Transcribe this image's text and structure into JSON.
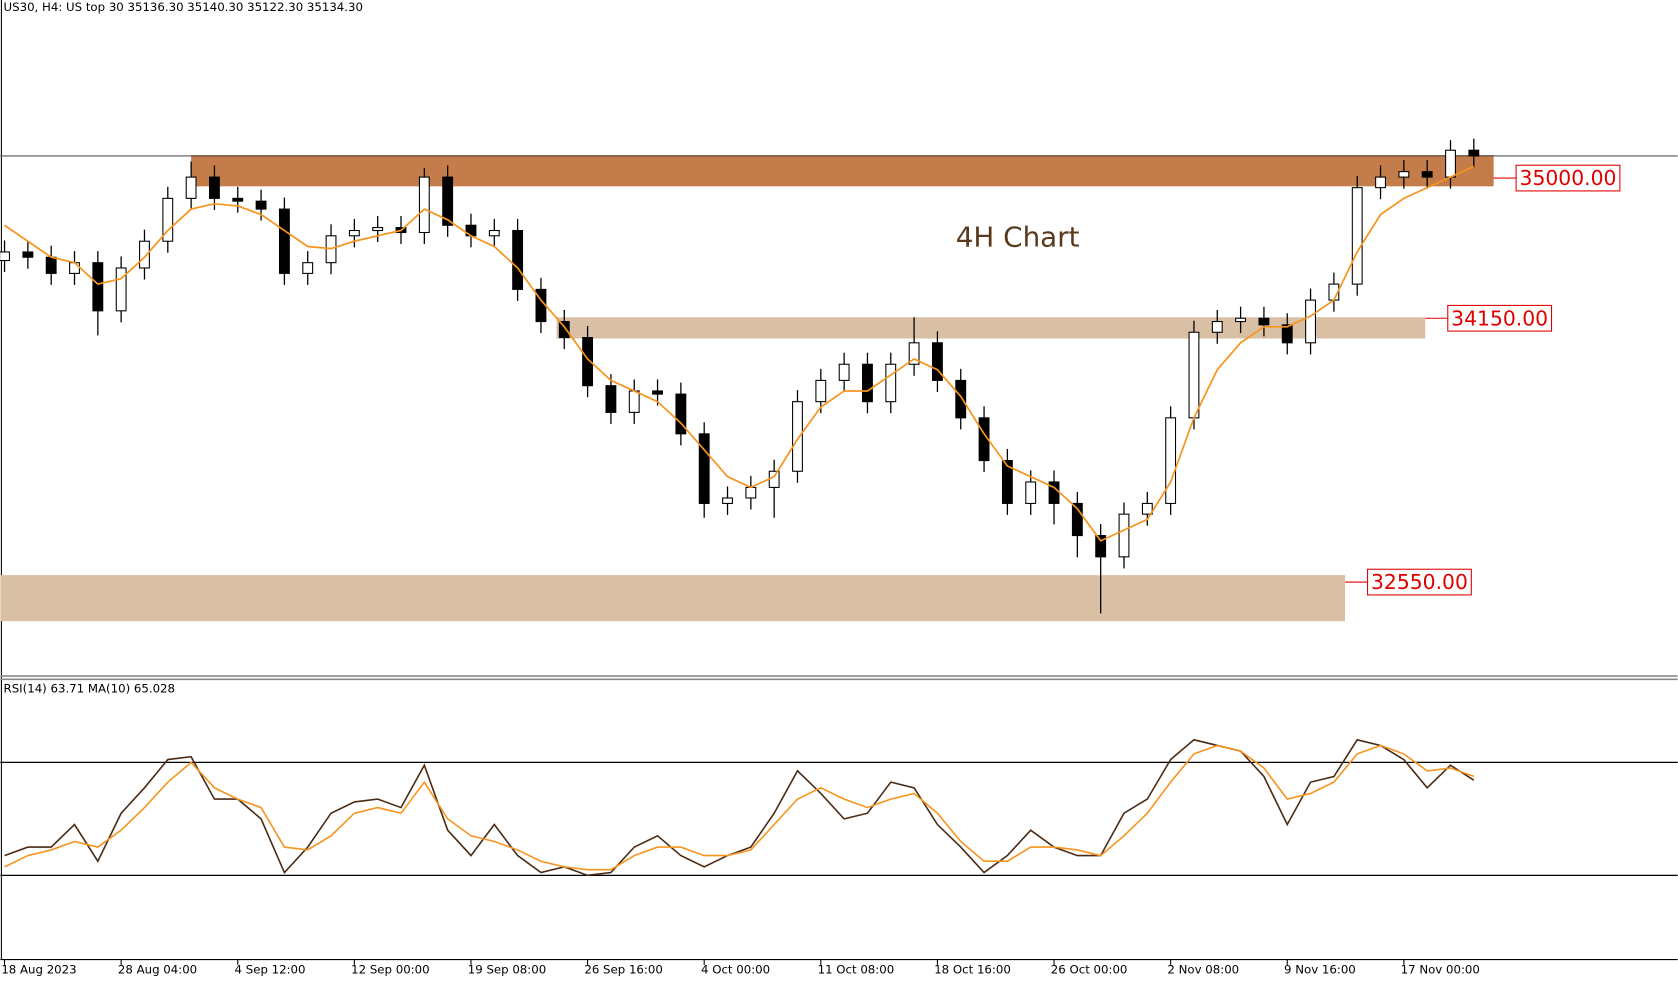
{
  "chart_data": [
    {
      "type": "candlestick",
      "title": "US30, H4:  US top 30  35136.30 35140.30 35122.30 35134.30",
      "annotation": "4H Chart",
      "xlim": [
        -0.18,
        71.74
      ],
      "ylim": [
        31980,
        36080
      ],
      "xticks": [
        {
          "value": 0,
          "label": "18 Aug 2023"
        },
        {
          "value": 5,
          "label": "28 Aug 04:00"
        },
        {
          "value": 10,
          "label": "4 Sep 12:00"
        },
        {
          "value": 15,
          "label": "12 Sep 00:00"
        },
        {
          "value": 20,
          "label": "19 Sep 08:00"
        },
        {
          "value": 25,
          "label": "26 Sep 16:00"
        },
        {
          "value": 30,
          "label": "4 Oct 00:00"
        },
        {
          "value": 35,
          "label": "11 Oct 08:00"
        },
        {
          "value": 40,
          "label": "18 Oct 16:00"
        },
        {
          "value": 45,
          "label": "26 Oct 00:00"
        },
        {
          "value": 50,
          "label": "2 Nov 08:00"
        },
        {
          "value": 55,
          "label": "9 Nov 16:00"
        },
        {
          "value": 60,
          "label": "17 Nov 00:00"
        }
      ],
      "open": [
        34500,
        34552,
        34520,
        34422,
        34487,
        34195,
        34455,
        34617,
        34877,
        35006,
        34877,
        34860,
        34812,
        34422,
        34487,
        34650,
        34682,
        34700,
        34670,
        35006,
        34714,
        34650,
        34682,
        34325,
        34130,
        34033,
        33741,
        33579,
        33709,
        33690,
        33449,
        33027,
        33060,
        33124,
        33222,
        33644,
        33773,
        33871,
        33644,
        33871,
        34001,
        33773,
        33546,
        33287,
        33027,
        33157,
        33027,
        32832,
        32703,
        32962,
        33027,
        33546,
        34065,
        34130,
        34150,
        34110,
        34001,
        34260,
        34357,
        34942,
        35006,
        35039,
        35006,
        35169
      ],
      "high": [
        34622,
        34622,
        34590,
        34557,
        34557,
        34525,
        34687,
        34947,
        35100,
        35076,
        34947,
        34930,
        34882,
        34557,
        34720,
        34752,
        34770,
        34770,
        35060,
        35076,
        34784,
        34752,
        34752,
        34395,
        34200,
        34103,
        33811,
        33779,
        33779,
        33760,
        33519,
        33130,
        33194,
        33292,
        33714,
        33843,
        33941,
        33941,
        33941,
        34156,
        34071,
        33843,
        33616,
        33357,
        33227,
        33227,
        33097,
        32902,
        33032,
        33097,
        33616,
        34135,
        34200,
        34220,
        34220,
        34180,
        34330,
        34427,
        35012,
        35076,
        35109,
        35109,
        35230,
        35239
      ],
      "low": [
        34430,
        34450,
        34352,
        34352,
        34046,
        34125,
        34385,
        34547,
        34807,
        34807,
        34790,
        34742,
        34352,
        34352,
        34417,
        34580,
        34612,
        34600,
        34600,
        34644,
        34580,
        34580,
        34255,
        34060,
        33963,
        33671,
        33509,
        33509,
        33620,
        33379,
        32940,
        32957,
        32990,
        32940,
        33152,
        33574,
        33703,
        33574,
        33574,
        33801,
        33703,
        33476,
        33217,
        32957,
        32957,
        32900,
        32700,
        32360,
        32633,
        32892,
        32957,
        33476,
        33995,
        34060,
        34040,
        33931,
        33931,
        34190,
        34287,
        34872,
        34936,
        34936,
        34936,
        35064
      ],
      "close": [
        34552,
        34520,
        34422,
        34487,
        34195,
        34455,
        34617,
        34877,
        35006,
        34877,
        34860,
        34812,
        34422,
        34487,
        34650,
        34682,
        34700,
        34670,
        35006,
        34714,
        34650,
        34682,
        34325,
        34130,
        34033,
        33741,
        33579,
        33709,
        33690,
        33449,
        33027,
        33060,
        33124,
        33222,
        33644,
        33773,
        33871,
        33644,
        33871,
        34001,
        33773,
        33546,
        33287,
        33027,
        33157,
        33027,
        32832,
        32703,
        32962,
        33027,
        33546,
        34065,
        34130,
        34150,
        34110,
        34001,
        34260,
        34357,
        34942,
        35006,
        35039,
        35006,
        35169,
        35134
      ],
      "candle_color": "#000000",
      "ma": {
        "color": "#f7941d",
        "values": [
          34714,
          34617,
          34520,
          34487,
          34357,
          34390,
          34520,
          34682,
          34812,
          34844,
          34831,
          34779,
          34682,
          34585,
          34572,
          34617,
          34650,
          34682,
          34812,
          34747,
          34650,
          34585,
          34455,
          34260,
          34098,
          33903,
          33773,
          33709,
          33644,
          33514,
          33352,
          33189,
          33124,
          33189,
          33416,
          33611,
          33709,
          33709,
          33806,
          33903,
          33838,
          33676,
          33449,
          33254,
          33189,
          33124,
          32995,
          32800,
          32865,
          32930,
          33157,
          33546,
          33838,
          34001,
          34098,
          34098,
          34163,
          34260,
          34552,
          34779,
          34877,
          34942,
          35006,
          35071
        ]
      },
      "price_line": 35134.3,
      "zones": [
        {
          "level": {
            "value": 35000,
            "label": "35000.00"
          },
          "top": 35140,
          "bottom": 34950,
          "x": [
            8,
            63.85
          ],
          "color": "#c47c4a"
        },
        {
          "level": {
            "value": 34150,
            "label": "34150.00"
          },
          "top": 34156,
          "bottom": 34027,
          "x": [
            23.67,
            60.92
          ],
          "color": "#d9c0a5"
        },
        {
          "level": {
            "value": 32550,
            "label": "32550.00"
          },
          "top": 32592,
          "bottom": 32313,
          "x": [
            -0.18,
            57.48
          ],
          "color": "#d9c0a5"
        }
      ],
      "label_color": "#e00000"
    },
    {
      "type": "line",
      "title": "RSI(14) 63.71 MA(10) 65.028",
      "xlim": [
        -0.18,
        71.74
      ],
      "ylim": [
        0,
        100
      ],
      "levels": [
        70,
        30
      ],
      "series": [
        {
          "color": "#4a2c16",
          "values": [
            37,
            40,
            40,
            48,
            35,
            52,
            61,
            71,
            72,
            57,
            57,
            50,
            31,
            40,
            52,
            56,
            57,
            54,
            69,
            46,
            37,
            48,
            37,
            31,
            33,
            30,
            31,
            40,
            44,
            37,
            33,
            37,
            40,
            52,
            67,
            59,
            50,
            52,
            63,
            61,
            48,
            40,
            31,
            37,
            46,
            40,
            37,
            37,
            52,
            57,
            71,
            78,
            76,
            74,
            65,
            48,
            63,
            65,
            78,
            76,
            71,
            61,
            69,
            63.71
          ]
        },
        {
          "color": "#f7941d",
          "values": [
            33,
            37,
            39,
            42,
            40,
            46,
            54,
            63,
            70,
            61,
            57,
            54,
            40,
            39,
            44,
            52,
            54,
            52,
            63,
            50,
            44,
            42,
            39,
            35,
            33,
            32,
            32,
            37,
            40,
            40,
            37,
            37,
            39,
            48,
            57,
            61,
            57,
            54,
            57,
            59,
            52,
            42,
            35,
            35,
            40,
            40,
            39,
            37,
            44,
            52,
            63,
            73,
            76,
            74,
            68,
            57,
            59,
            63,
            73,
            76,
            73,
            67,
            68,
            65.028
          ]
        }
      ]
    }
  ]
}
